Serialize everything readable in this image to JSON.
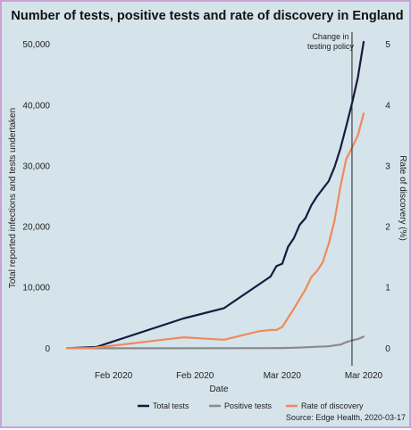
{
  "chart_data": {
    "type": "line",
    "title": "Number of tests, positive tests and rate of discovery in England",
    "xlabel": "Date",
    "ylabel": "Total reported infections and tests undertaken",
    "y2label": "Rate of discovery (%)",
    "xlim": [
      "2020-01-22",
      "2020-03-17"
    ],
    "ylim": [
      -2000,
      52000
    ],
    "y2lim": [
      -0.2,
      5.2
    ],
    "x_ticks": [
      {
        "date": "2020-02-01",
        "label": "Feb 2020"
      },
      {
        "date": "2020-02-15",
        "label": "Feb 2020"
      },
      {
        "date": "2020-03-01",
        "label": "Mar 2020"
      },
      {
        "date": "2020-03-15",
        "label": "Mar 2020"
      }
    ],
    "y_ticks": [
      0,
      10000,
      20000,
      30000,
      40000,
      50000
    ],
    "y_tick_labels": [
      "0",
      "10,000",
      "20,000",
      "30,000",
      "40,000",
      "50,000"
    ],
    "y2_ticks": [
      0,
      1,
      2,
      3,
      4,
      5
    ],
    "y2_tick_labels": [
      "0",
      "1",
      "2",
      "3",
      "4",
      "5"
    ],
    "grid": false,
    "legend_position": "bottom",
    "annotation": {
      "date": "2020-03-13",
      "text_lines": [
        "Change in",
        "testing policy"
      ]
    },
    "series": [
      {
        "name": "Total tests",
        "axis": "left",
        "color": "#161a3f",
        "points": [
          [
            "2020-01-24",
            0
          ],
          [
            "2020-01-29",
            200
          ],
          [
            "2020-02-13",
            4900
          ],
          [
            "2020-02-20",
            6600
          ],
          [
            "2020-02-28",
            11800
          ],
          [
            "2020-02-29",
            13500
          ],
          [
            "2020-03-01",
            13900
          ],
          [
            "2020-03-02",
            16700
          ],
          [
            "2020-03-03",
            18100
          ],
          [
            "2020-03-04",
            20300
          ],
          [
            "2020-03-05",
            21400
          ],
          [
            "2020-03-06",
            23500
          ],
          [
            "2020-03-07",
            25000
          ],
          [
            "2020-03-09",
            27500
          ],
          [
            "2020-03-10",
            29800
          ],
          [
            "2020-03-11",
            32800
          ],
          [
            "2020-03-12",
            36500
          ],
          [
            "2020-03-13",
            40300
          ],
          [
            "2020-03-14",
            44500
          ],
          [
            "2020-03-15",
            50400
          ]
        ]
      },
      {
        "name": "Positive tests",
        "axis": "left",
        "color": "#8a8a8a",
        "points": [
          [
            "2020-01-24",
            0
          ],
          [
            "2020-02-20",
            10
          ],
          [
            "2020-02-28",
            20
          ],
          [
            "2020-03-01",
            40
          ],
          [
            "2020-03-03",
            80
          ],
          [
            "2020-03-05",
            160
          ],
          [
            "2020-03-07",
            250
          ],
          [
            "2020-03-09",
            320
          ],
          [
            "2020-03-10",
            460
          ],
          [
            "2020-03-11",
            600
          ],
          [
            "2020-03-12",
            1000
          ],
          [
            "2020-03-13",
            1300
          ],
          [
            "2020-03-14",
            1500
          ],
          [
            "2020-03-15",
            1900
          ]
        ]
      },
      {
        "name": "Rate of discovery",
        "axis": "right",
        "color": "#ef8a5b",
        "points": [
          [
            "2020-01-24",
            0
          ],
          [
            "2020-01-28",
            0
          ],
          [
            "2020-02-13",
            0.18
          ],
          [
            "2020-02-20",
            0.14
          ],
          [
            "2020-02-26",
            0.28
          ],
          [
            "2020-02-28",
            0.3
          ],
          [
            "2020-02-29",
            0.3
          ],
          [
            "2020-03-01",
            0.35
          ],
          [
            "2020-03-03",
            0.65
          ],
          [
            "2020-03-05",
            0.97
          ],
          [
            "2020-03-06",
            1.17
          ],
          [
            "2020-03-07",
            1.27
          ],
          [
            "2020-03-08",
            1.42
          ],
          [
            "2020-03-09",
            1.72
          ],
          [
            "2020-03-10",
            2.1
          ],
          [
            "2020-03-11",
            2.65
          ],
          [
            "2020-03-12",
            3.11
          ],
          [
            "2020-03-13",
            3.3
          ],
          [
            "2020-03-14",
            3.5
          ],
          [
            "2020-03-15",
            3.86
          ]
        ]
      }
    ],
    "caption": "Source: Edge Health, 2020-03-17"
  }
}
